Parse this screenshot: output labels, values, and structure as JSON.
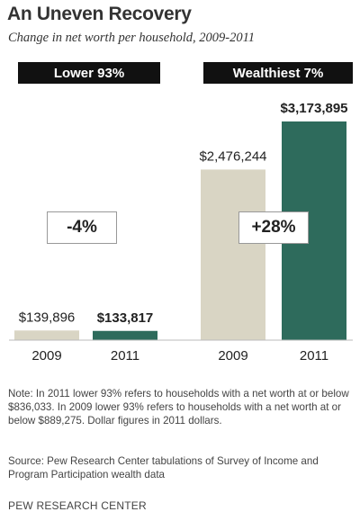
{
  "chart_data": {
    "type": "bar",
    "title": "An Uneven Recovery",
    "subtitle": "Change in net worth per household, 2009-2011",
    "groups": [
      {
        "name": "Lower 93%",
        "change": "-4%",
        "bars": [
          {
            "year": "2009",
            "value": 139896,
            "label": "$139,896",
            "color": "#d9d5c4",
            "bold": false
          },
          {
            "year": "2011",
            "value": 133817,
            "label": "$133,817",
            "color": "#2e6b5c",
            "bold": true
          }
        ]
      },
      {
        "name": "Wealthiest 7%",
        "change": "+28%",
        "bars": [
          {
            "year": "2009",
            "value": 2476244,
            "label": "$2,476,244",
            "color": "#d9d5c4",
            "bold": false
          },
          {
            "year": "2011",
            "value": 3173895,
            "label": "$3,173,895",
            "color": "#2e6b5c",
            "bold": true
          }
        ]
      }
    ],
    "ylim": [
      0,
      3173895
    ],
    "grid": false,
    "legend": "none"
  },
  "note": "Note: In 2011 lower 93% refers to households with a net worth at or below $836,033. In 2009 lower 93% refers to households with a net worth at or below $889,275. Dollar figures in 2011 dollars.",
  "source": "Source: Pew Research Center tabulations of Survey of Income and Program Participation wealth data",
  "credit": "PEW RESEARCH CENTER"
}
